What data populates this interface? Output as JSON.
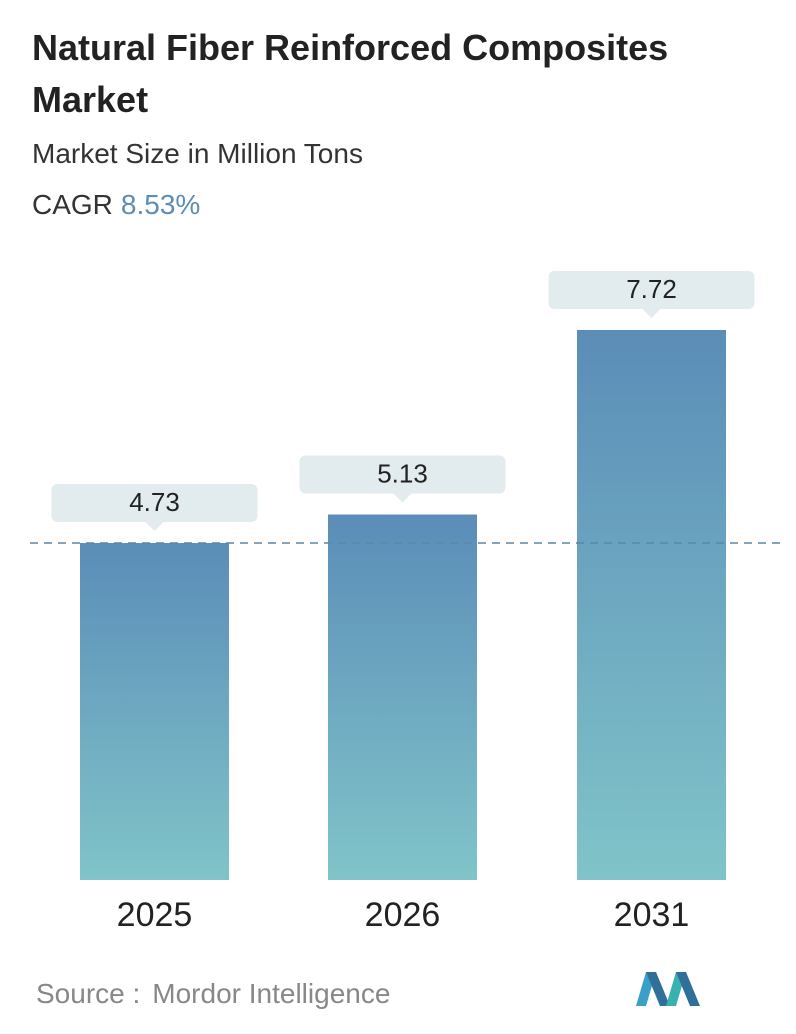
{
  "chart_data": {
    "type": "bar",
    "title": "Natural Fiber Reinforced Composites Market",
    "subtitle": "Market Size in Million Tons",
    "cagr_label": "CAGR",
    "cagr_value": "8.53%",
    "categories": [
      "2025",
      "2026",
      "2031"
    ],
    "values": [
      4.73,
      5.13,
      7.72
    ],
    "colors": [
      "#5b8db8",
      "#80c4c9"
    ],
    "reference_line": true,
    "source_label": "Source :",
    "source": "Mordor Intelligence"
  }
}
